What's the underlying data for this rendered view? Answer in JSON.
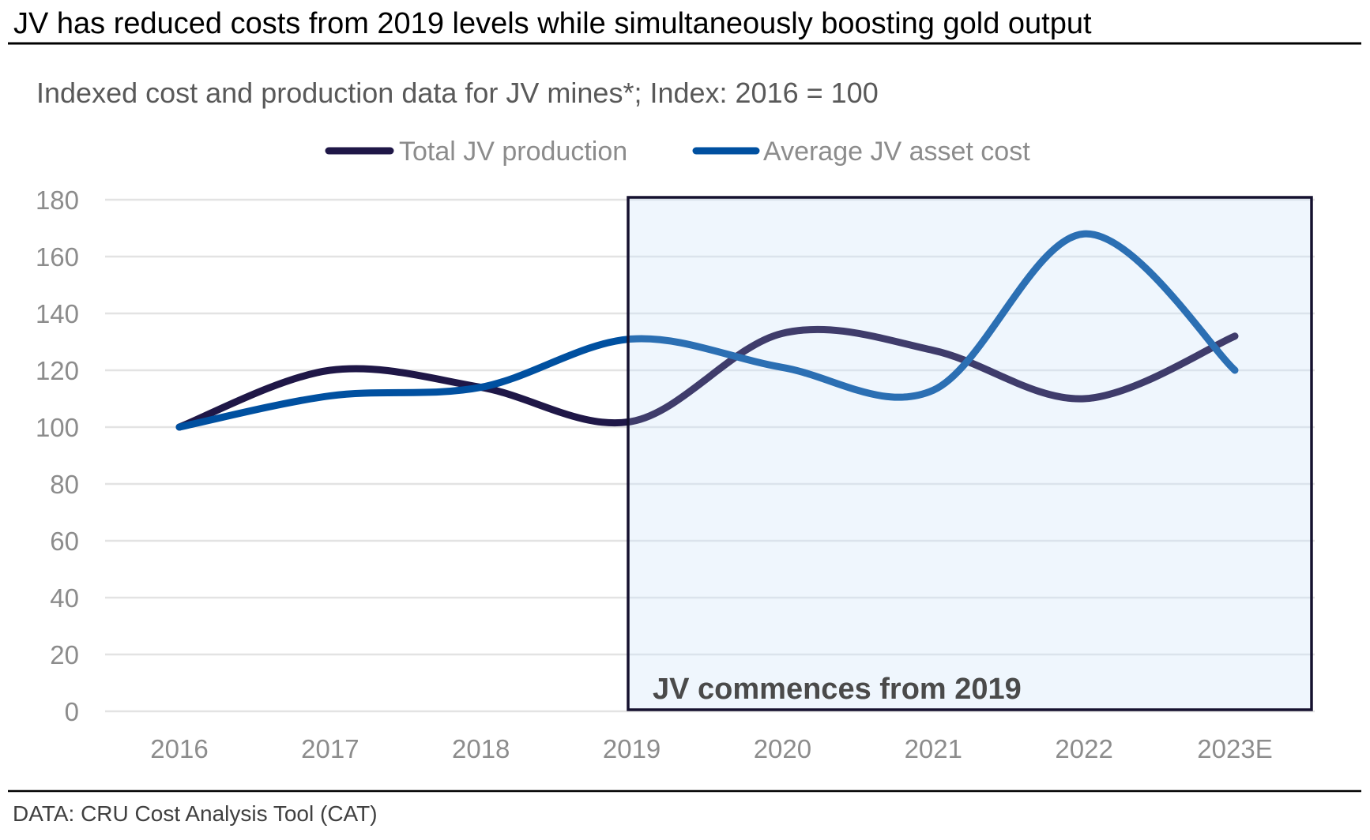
{
  "header": {
    "title": "JV has reduced costs from 2019 levels while simultaneously boosting gold output",
    "subtitle": "Indexed cost and production data for JV mines*; Index: 2016 = 100"
  },
  "footer": {
    "source": "DATA: CRU Cost Analysis Tool (CAT)"
  },
  "chart_data": {
    "type": "line",
    "title": "Indexed cost and production data for JV mines*; Index: 2016 = 100",
    "xlabel": "",
    "ylabel": "",
    "categories": [
      "2016",
      "2017",
      "2018",
      "2019",
      "2020",
      "2021",
      "2022",
      "2023E"
    ],
    "ylim": [
      0,
      180
    ],
    "yticks": [
      0,
      20,
      40,
      60,
      80,
      100,
      120,
      140,
      160,
      180
    ],
    "ytick_labels": [
      "0",
      "20",
      "40",
      "60",
      "80",
      "100",
      "120",
      "140",
      "160",
      "180"
    ],
    "grid": true,
    "smooth": true,
    "legend_position": "top-center",
    "series": [
      {
        "name": "Total JV production",
        "color": "#1f1747",
        "highlight_color": "#3f3c6b",
        "values": [
          100,
          120,
          114,
          102,
          133,
          127,
          110,
          132
        ]
      },
      {
        "name": "Average JV asset cost",
        "color": "#0050a0",
        "highlight_color": "#2b6fb3",
        "values": [
          100,
          111,
          114,
          131,
          121,
          113,
          168,
          120
        ]
      }
    ],
    "annotations": [
      {
        "type": "shaded-region",
        "from_category": "2019",
        "to_category": "2023E",
        "label": "JV commences from 2019",
        "fill": "#eff6fd",
        "border": "#15112f"
      }
    ]
  }
}
